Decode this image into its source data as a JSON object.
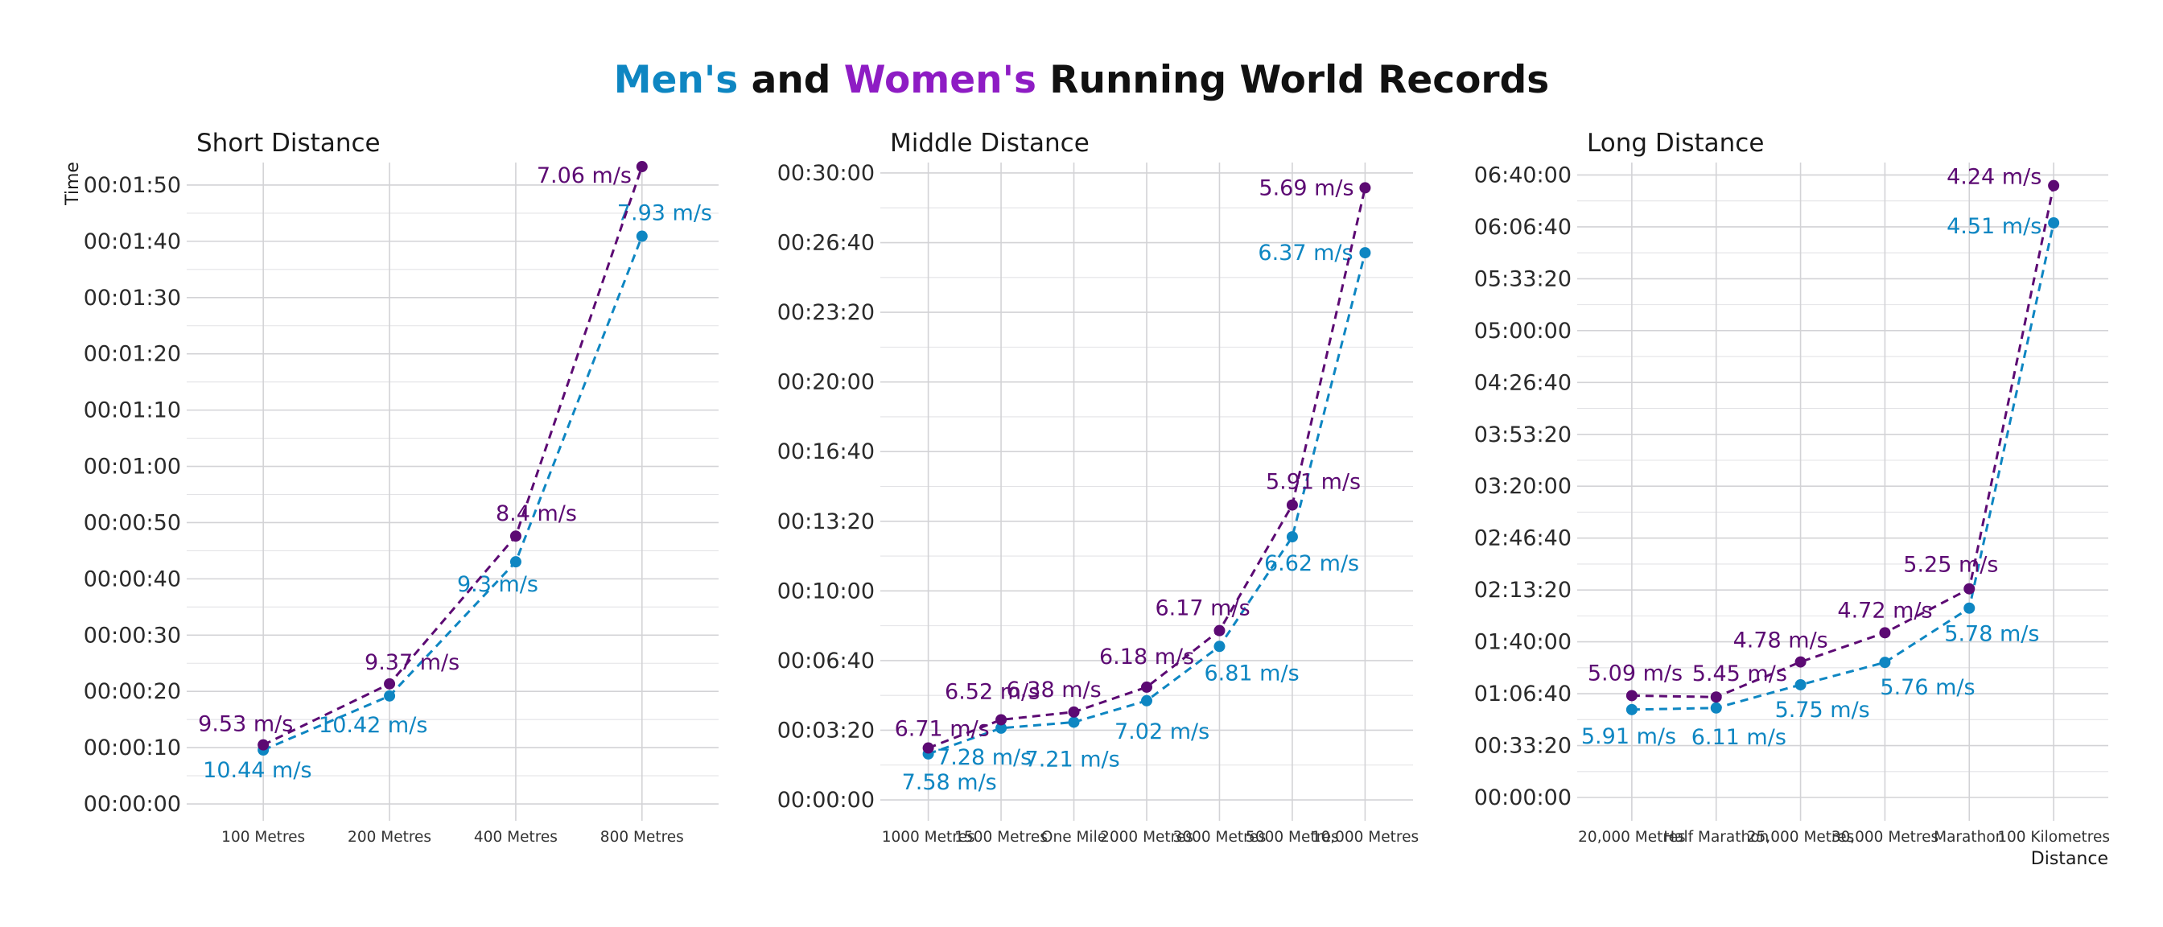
{
  "title": {
    "part1": "Men's",
    "part2": " and ",
    "part3": "Women's",
    "part4": " Running World Records"
  },
  "colors": {
    "men": "#0e86c2",
    "women": "#5c0a73",
    "women_title": "#8e1cc4",
    "text": "#111111"
  },
  "chart_data": [
    {
      "type": "line",
      "title": "Short Distance",
      "xlabel": "",
      "ylabel": "Time",
      "categories": [
        "100 Metres",
        "200 Metres",
        "400 Metres",
        "800 Metres"
      ],
      "y_ticks": [
        "00:00:00",
        "00:00:10",
        "00:00:20",
        "00:00:30",
        "00:00:40",
        "00:00:50",
        "00:01:00",
        "00:01:10",
        "00:01:20",
        "00:01:30",
        "00:01:40",
        "00:01:50"
      ],
      "ylim": [
        "-00:00:03",
        "00:01:54"
      ],
      "series": [
        {
          "name": "Men's",
          "values": [
            "00:00:09.58",
            "00:00:19.19",
            "00:00:43.03",
            "00:01:40.91"
          ],
          "labels": [
            "10.44 m/s",
            "10.42 m/s",
            "9.3 m/s",
            "7.93 m/s"
          ]
        },
        {
          "name": "Women's",
          "values": [
            "00:00:10.49",
            "00:00:21.34",
            "00:00:47.60",
            "00:01:53.28"
          ],
          "labels": [
            "9.53 m/s",
            "9.37 m/s",
            "8.4 m/s",
            "7.06 m/s"
          ]
        }
      ]
    },
    {
      "type": "line",
      "title": "Middle Distance",
      "xlabel": "",
      "ylabel": "",
      "categories": [
        "1000 Metres",
        "1500 Metres",
        "One Mile",
        "2000 Metres",
        "3000 Metres",
        "5000 Metres",
        "10,000 Metres"
      ],
      "y_ticks": [
        "00:00:00",
        "00:03:20",
        "00:06:40",
        "00:10:00",
        "00:13:20",
        "00:16:40",
        "00:20:00",
        "00:23:20",
        "00:26:40",
        "00:30:00"
      ],
      "ylim": [
        "-00:01:00",
        "00:30:30"
      ],
      "series": [
        {
          "name": "Men's",
          "values": [
            "00:02:11.96",
            "00:03:26.00",
            "00:03:43.13",
            "00:04:44.79",
            "00:07:20.67",
            "00:12:35.36",
            "00:26:11.00"
          ],
          "labels": [
            "7.58 m/s",
            "7.28 m/s",
            "7.21 m/s",
            "7.02 m/s",
            "6.81 m/s",
            "6.62 m/s",
            "6.37 m/s"
          ]
        },
        {
          "name": "Women's",
          "values": [
            "00:02:28.98",
            "00:03:50.07",
            "00:04:12.33",
            "00:05:23.75",
            "00:08:06.11",
            "00:14:06.62",
            "00:29:17.45"
          ],
          "labels": [
            "6.71 m/s",
            "6.52 m/s",
            "6.38 m/s",
            "6.18 m/s",
            "6.17 m/s",
            "5.91 m/s",
            "5.69 m/s"
          ]
        }
      ]
    },
    {
      "type": "line",
      "title": "Long Distance",
      "xlabel": "Distance",
      "ylabel": "",
      "categories": [
        "20,000 Metres",
        "Half Marathon",
        "25,000 Metres",
        "30,000 Metres",
        "Marathon",
        "100 Kilometres"
      ],
      "y_ticks": [
        "00:00:00",
        "00:33:20",
        "01:06:40",
        "01:40:00",
        "02:13:20",
        "02:46:40",
        "03:20:00",
        "03:53:20",
        "04:26:40",
        "05:00:00",
        "05:33:20",
        "06:06:40",
        "06:40:00"
      ],
      "ylim": [
        "-00:15:00",
        "06:48:00"
      ],
      "series": [
        {
          "name": "Men's",
          "values": [
            "00:56:26",
            "00:57:31",
            "01:12:25",
            "01:26:47",
            "02:01:39",
            "06:09:14"
          ],
          "labels": [
            "5.91 m/s",
            "6.11 m/s",
            "5.75 m/s",
            "5.76 m/s",
            "5.78 m/s",
            "4.51 m/s"
          ]
        },
        {
          "name": "Women's",
          "values": [
            "01:05:26",
            "01:04:31",
            "01:27:05",
            "01:45:50",
            "02:14:04",
            "06:33:11"
          ],
          "labels": [
            "5.09 m/s",
            "5.45 m/s",
            "4.78 m/s",
            "4.72 m/s",
            "5.25 m/s",
            "4.24 m/s"
          ]
        }
      ]
    }
  ]
}
